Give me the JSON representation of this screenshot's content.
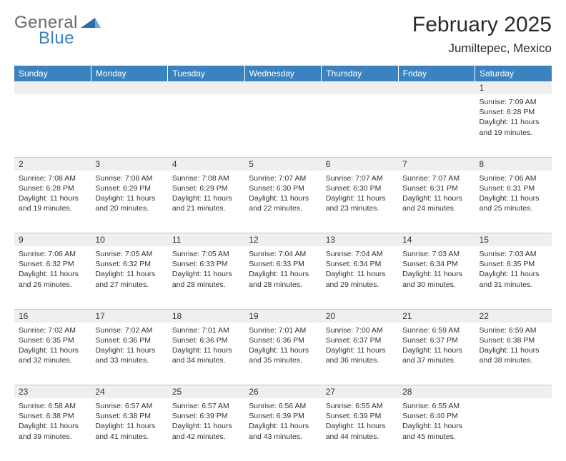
{
  "logo": {
    "text1": "General",
    "text2": "Blue",
    "triangle_color": "#2f6aad"
  },
  "header": {
    "month_title": "February 2025",
    "location": "Jumiltepec, Mexico"
  },
  "colors": {
    "header_bg": "#3b83c0",
    "daynum_bg": "#efefef",
    "rule": "#c8c8c8",
    "text": "#333333",
    "logo_gray": "#6a6a6a",
    "logo_blue": "#3b7fc4"
  },
  "weekdays": [
    "Sunday",
    "Monday",
    "Tuesday",
    "Wednesday",
    "Thursday",
    "Friday",
    "Saturday"
  ],
  "weeks": [
    {
      "nums": [
        "",
        "",
        "",
        "",
        "",
        "",
        "1"
      ],
      "cells": [
        null,
        null,
        null,
        null,
        null,
        null,
        {
          "sunrise": "Sunrise: 7:09 AM",
          "sunset": "Sunset: 6:28 PM",
          "day1": "Daylight: 11 hours",
          "day2": "and 19 minutes."
        }
      ]
    },
    {
      "nums": [
        "2",
        "3",
        "4",
        "5",
        "6",
        "7",
        "8"
      ],
      "cells": [
        {
          "sunrise": "Sunrise: 7:08 AM",
          "sunset": "Sunset: 6:28 PM",
          "day1": "Daylight: 11 hours",
          "day2": "and 19 minutes."
        },
        {
          "sunrise": "Sunrise: 7:08 AM",
          "sunset": "Sunset: 6:29 PM",
          "day1": "Daylight: 11 hours",
          "day2": "and 20 minutes."
        },
        {
          "sunrise": "Sunrise: 7:08 AM",
          "sunset": "Sunset: 6:29 PM",
          "day1": "Daylight: 11 hours",
          "day2": "and 21 minutes."
        },
        {
          "sunrise": "Sunrise: 7:07 AM",
          "sunset": "Sunset: 6:30 PM",
          "day1": "Daylight: 11 hours",
          "day2": "and 22 minutes."
        },
        {
          "sunrise": "Sunrise: 7:07 AM",
          "sunset": "Sunset: 6:30 PM",
          "day1": "Daylight: 11 hours",
          "day2": "and 23 minutes."
        },
        {
          "sunrise": "Sunrise: 7:07 AM",
          "sunset": "Sunset: 6:31 PM",
          "day1": "Daylight: 11 hours",
          "day2": "and 24 minutes."
        },
        {
          "sunrise": "Sunrise: 7:06 AM",
          "sunset": "Sunset: 6:31 PM",
          "day1": "Daylight: 11 hours",
          "day2": "and 25 minutes."
        }
      ]
    },
    {
      "nums": [
        "9",
        "10",
        "11",
        "12",
        "13",
        "14",
        "15"
      ],
      "cells": [
        {
          "sunrise": "Sunrise: 7:06 AM",
          "sunset": "Sunset: 6:32 PM",
          "day1": "Daylight: 11 hours",
          "day2": "and 26 minutes."
        },
        {
          "sunrise": "Sunrise: 7:05 AM",
          "sunset": "Sunset: 6:32 PM",
          "day1": "Daylight: 11 hours",
          "day2": "and 27 minutes."
        },
        {
          "sunrise": "Sunrise: 7:05 AM",
          "sunset": "Sunset: 6:33 PM",
          "day1": "Daylight: 11 hours",
          "day2": "and 28 minutes."
        },
        {
          "sunrise": "Sunrise: 7:04 AM",
          "sunset": "Sunset: 6:33 PM",
          "day1": "Daylight: 11 hours",
          "day2": "and 28 minutes."
        },
        {
          "sunrise": "Sunrise: 7:04 AM",
          "sunset": "Sunset: 6:34 PM",
          "day1": "Daylight: 11 hours",
          "day2": "and 29 minutes."
        },
        {
          "sunrise": "Sunrise: 7:03 AM",
          "sunset": "Sunset: 6:34 PM",
          "day1": "Daylight: 11 hours",
          "day2": "and 30 minutes."
        },
        {
          "sunrise": "Sunrise: 7:03 AM",
          "sunset": "Sunset: 6:35 PM",
          "day1": "Daylight: 11 hours",
          "day2": "and 31 minutes."
        }
      ]
    },
    {
      "nums": [
        "16",
        "17",
        "18",
        "19",
        "20",
        "21",
        "22"
      ],
      "cells": [
        {
          "sunrise": "Sunrise: 7:02 AM",
          "sunset": "Sunset: 6:35 PM",
          "day1": "Daylight: 11 hours",
          "day2": "and 32 minutes."
        },
        {
          "sunrise": "Sunrise: 7:02 AM",
          "sunset": "Sunset: 6:36 PM",
          "day1": "Daylight: 11 hours",
          "day2": "and 33 minutes."
        },
        {
          "sunrise": "Sunrise: 7:01 AM",
          "sunset": "Sunset: 6:36 PM",
          "day1": "Daylight: 11 hours",
          "day2": "and 34 minutes."
        },
        {
          "sunrise": "Sunrise: 7:01 AM",
          "sunset": "Sunset: 6:36 PM",
          "day1": "Daylight: 11 hours",
          "day2": "and 35 minutes."
        },
        {
          "sunrise": "Sunrise: 7:00 AM",
          "sunset": "Sunset: 6:37 PM",
          "day1": "Daylight: 11 hours",
          "day2": "and 36 minutes."
        },
        {
          "sunrise": "Sunrise: 6:59 AM",
          "sunset": "Sunset: 6:37 PM",
          "day1": "Daylight: 11 hours",
          "day2": "and 37 minutes."
        },
        {
          "sunrise": "Sunrise: 6:59 AM",
          "sunset": "Sunset: 6:38 PM",
          "day1": "Daylight: 11 hours",
          "day2": "and 38 minutes."
        }
      ]
    },
    {
      "nums": [
        "23",
        "24",
        "25",
        "26",
        "27",
        "28",
        ""
      ],
      "cells": [
        {
          "sunrise": "Sunrise: 6:58 AM",
          "sunset": "Sunset: 6:38 PM",
          "day1": "Daylight: 11 hours",
          "day2": "and 39 minutes."
        },
        {
          "sunrise": "Sunrise: 6:57 AM",
          "sunset": "Sunset: 6:38 PM",
          "day1": "Daylight: 11 hours",
          "day2": "and 41 minutes."
        },
        {
          "sunrise": "Sunrise: 6:57 AM",
          "sunset": "Sunset: 6:39 PM",
          "day1": "Daylight: 11 hours",
          "day2": "and 42 minutes."
        },
        {
          "sunrise": "Sunrise: 6:56 AM",
          "sunset": "Sunset: 6:39 PM",
          "day1": "Daylight: 11 hours",
          "day2": "and 43 minutes."
        },
        {
          "sunrise": "Sunrise: 6:55 AM",
          "sunset": "Sunset: 6:39 PM",
          "day1": "Daylight: 11 hours",
          "day2": "and 44 minutes."
        },
        {
          "sunrise": "Sunrise: 6:55 AM",
          "sunset": "Sunset: 6:40 PM",
          "day1": "Daylight: 11 hours",
          "day2": "and 45 minutes."
        },
        null
      ]
    }
  ]
}
